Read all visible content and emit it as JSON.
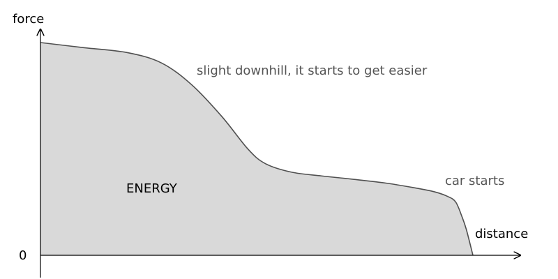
{
  "chart_data": {
    "type": "area",
    "xlabel": "distance",
    "ylabel": "force",
    "y_tick_labels": [
      "0"
    ],
    "area_label": "ENERGY",
    "annotations": [
      "slight downhill, it starts to get easier",
      "car starts"
    ],
    "series": [
      {
        "x": [
          0,
          0.1,
          0.2,
          0.28,
          0.35,
          0.42,
          0.48,
          0.52,
          0.58,
          0.65,
          0.72,
          0.8,
          0.86,
          0.91,
          0.94,
          0.96,
          0.975,
          0.985,
          1.0
        ],
        "y": [
          1.0,
          0.976,
          0.953,
          0.904,
          0.801,
          0.651,
          0.499,
          0.431,
          0.391,
          0.373,
          0.358,
          0.339,
          0.319,
          0.299,
          0.278,
          0.251,
          0.18,
          0.12,
          0.0
        ]
      }
    ],
    "xlim": [
      0,
      1.0
    ],
    "ylim": [
      0,
      1.0
    ],
    "fill_color": "#d9d9d9",
    "line_color": "#505050",
    "axis_color": "#000000",
    "annotation_color": "#555555",
    "grid": false,
    "legend": "none"
  }
}
